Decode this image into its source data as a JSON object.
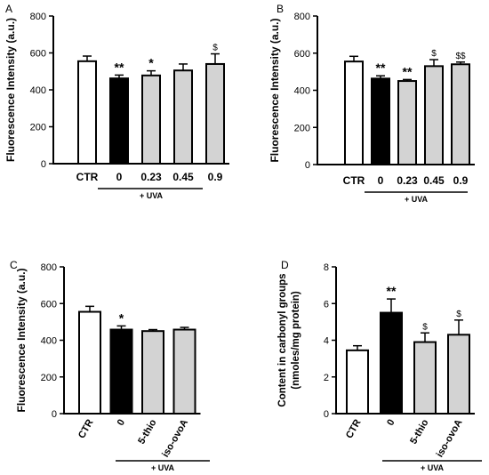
{
  "chart_data": [
    {
      "panel": "A",
      "type": "bar",
      "ylabel": "Fluorescence Intensity (a.u.)",
      "ylim": [
        0,
        800
      ],
      "yticks": [
        "0",
        "200",
        "400",
        "600",
        "800"
      ],
      "categories": [
        "CTR",
        "0",
        "0.23",
        "0.45",
        "0.9"
      ],
      "values": [
        555,
        462,
        478,
        505,
        540
      ],
      "errors": [
        28,
        18,
        25,
        35,
        55
      ],
      "fills": [
        "#ffffff",
        "#000000",
        "#d3d3d3",
        "#d3d3d3",
        "#d3d3d3"
      ],
      "significance": [
        "",
        "**",
        "*",
        "",
        "$"
      ],
      "group_label": "+ UVA",
      "x_label_rotation": 0
    },
    {
      "panel": "B",
      "type": "bar",
      "ylabel": "Fluorescence Intensity (a.u.)",
      "ylim": [
        0,
        800
      ],
      "yticks": [
        "0",
        "200",
        "400",
        "600",
        "800"
      ],
      "categories": [
        "CTR",
        "0",
        "0.23",
        "0.45",
        "0.9"
      ],
      "values": [
        555,
        463,
        450,
        530,
        540
      ],
      "errors": [
        28,
        15,
        8,
        35,
        12
      ],
      "fills": [
        "#ffffff",
        "#000000",
        "#d3d3d3",
        "#d3d3d3",
        "#d3d3d3"
      ],
      "significance": [
        "",
        "**",
        "**",
        "$",
        "$$"
      ],
      "group_label": "+ UVA",
      "x_label_rotation": 0
    },
    {
      "panel": "C",
      "type": "bar",
      "ylabel": "Fluorescence Intensity (a.u.)",
      "ylim": [
        0,
        800
      ],
      "yticks": [
        "0",
        "200",
        "400",
        "600",
        "800"
      ],
      "categories": [
        "CTR",
        "0",
        "5-thio",
        "iso-ovoA"
      ],
      "values": [
        555,
        458,
        450,
        458
      ],
      "errors": [
        30,
        20,
        8,
        12
      ],
      "fills": [
        "#ffffff",
        "#000000",
        "#d3d3d3",
        "#d3d3d3"
      ],
      "significance": [
        "",
        "*",
        "",
        ""
      ],
      "group_label": "+ UVA",
      "x_label_rotation": -60
    },
    {
      "panel": "D",
      "type": "bar",
      "ylabel": "Content in carbonyl groups (nmoles/mg protein)",
      "ylabel_lines": [
        "Content in carbonyl groups",
        "(nmoles/mg protein)"
      ],
      "ylim": [
        0,
        8
      ],
      "yticks": [
        "0",
        "2",
        "4",
        "6",
        "8"
      ],
      "categories": [
        "CTR",
        "0",
        "5-thio",
        "iso-ovoA"
      ],
      "values": [
        3.45,
        5.5,
        3.9,
        4.3
      ],
      "errors": [
        0.25,
        0.75,
        0.5,
        0.8
      ],
      "fills": [
        "#ffffff",
        "#000000",
        "#d3d3d3",
        "#d3d3d3"
      ],
      "significance": [
        "",
        "**",
        "$",
        "$"
      ],
      "group_label": "+ UVA",
      "x_label_rotation": -60
    }
  ]
}
